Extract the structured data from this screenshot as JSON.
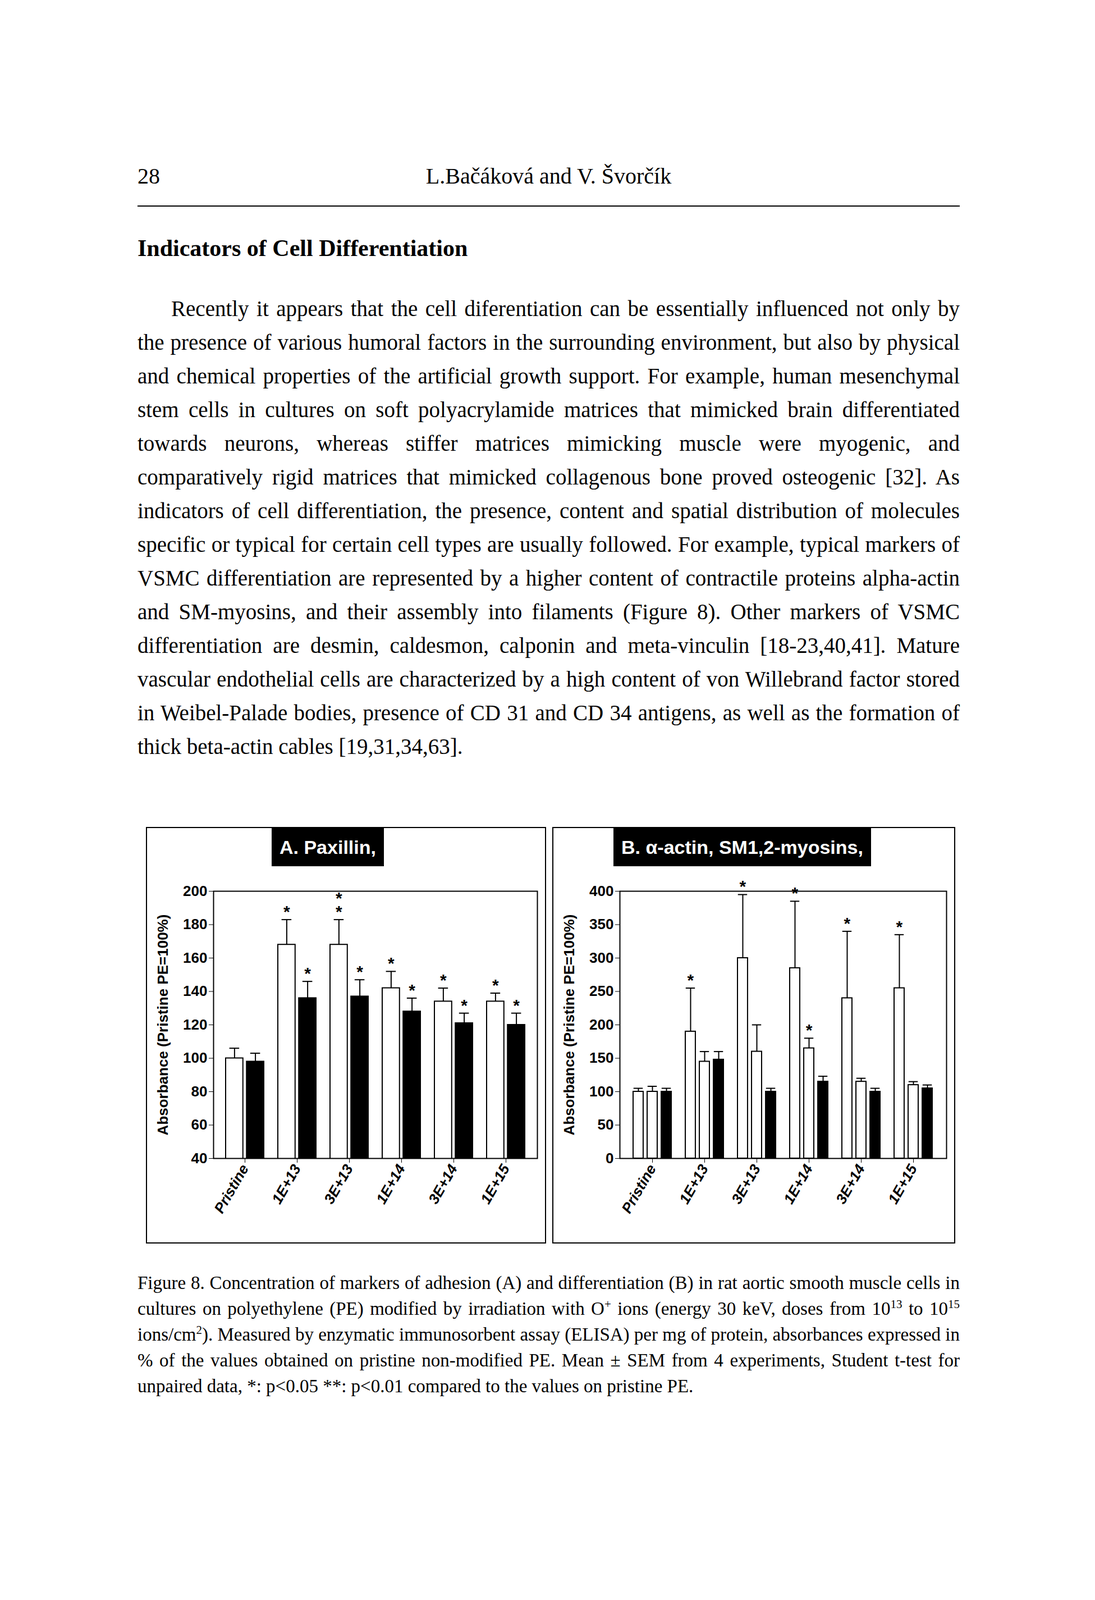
{
  "header": {
    "page_number": "28",
    "authors": "L.Bačáková and V. Švorčík"
  },
  "section_title": "Indicators of Cell Differentiation",
  "paragraph": "Recently it appears that the cell diferentiation can be essentially influenced not only by the presence of various humoral factors in the surrounding environment, but also by physical and chemical properties of the artificial growth support. For example, human mesenchymal stem cells in cultures on soft polyacrylamide matrices that mimicked brain differentiated towards neurons, whereas stiffer matrices mimicking muscle were myogenic, and comparatively rigid matrices that mimicked collagenous bone proved osteogenic [32]. As indicators of cell differentiation, the presence, content and spatial distribution of molecules specific or typical for certain cell types are usually followed. For example, typical markers of VSMC differentiation are represented by a higher content of contractile proteins alpha-actin and SM-myosins, and their assembly into filaments (Figure 8). Other markers of VSMC differentiation are desmin, caldesmon, calponin and meta-vinculin [18-23,40,41]. Mature vascular endothelial cells are characterized by a high content of von Willebrand factor stored in Weibel-Palade bodies, presence of CD 31 and CD 34 antigens, as well as the formation of thick beta-actin cables [19,31,34,63].",
  "chart_data": [
    {
      "type": "bar",
      "title": "A. Paxillin,",
      "y_label": "Absorbance (Pristine PE=100%)",
      "categories": [
        "Pristine",
        "1E+13",
        "3E+13",
        "1E+14",
        "3E+14",
        "1E+15"
      ],
      "series": [
        {
          "color": "#ffffff",
          "values": [
            100,
            168,
            168,
            142,
            134,
            134
          ],
          "errors": [
            6,
            15,
            15,
            10,
            8,
            5
          ],
          "significance": [
            null,
            "*",
            "**",
            "*",
            "*",
            "*"
          ]
        },
        {
          "color": "#000000",
          "values": [
            98,
            136,
            137,
            128,
            121,
            120
          ],
          "errors": [
            5,
            10,
            10,
            8,
            6,
            7
          ],
          "significance": [
            null,
            "*",
            "*",
            "*",
            "*",
            "*"
          ]
        }
      ],
      "ylim": [
        40,
        200
      ],
      "yticks": [
        40,
        60,
        80,
        100,
        120,
        140,
        160,
        180,
        200
      ]
    },
    {
      "type": "bar",
      "title": "B. α-actin, SM1,2-myosins,",
      "y_label": "Absorbance (Pristine PE=100%)",
      "categories": [
        "Pristine",
        "1E+13",
        "3E+13",
        "1E+14",
        "3E+14",
        "1E+15"
      ],
      "series": [
        {
          "color": "#ffffff",
          "values": [
            100,
            190,
            300,
            285,
            240,
            255
          ],
          "errors": [
            5,
            65,
            95,
            100,
            100,
            80
          ],
          "significance": [
            null,
            "*",
            "*",
            "*",
            "*",
            "*"
          ]
        },
        {
          "color": "#ffffff",
          "values": [
            100,
            145,
            160,
            165,
            115,
            110
          ],
          "errors": [
            8,
            15,
            40,
            15,
            5,
            5
          ],
          "significance": [
            null,
            null,
            null,
            "*",
            null,
            null
          ]
        },
        {
          "color": "#000000",
          "values": [
            100,
            148,
            100,
            115,
            100,
            105
          ],
          "errors": [
            5,
            12,
            5,
            8,
            5,
            5
          ],
          "significance": [
            null,
            null,
            null,
            null,
            null,
            null
          ]
        }
      ],
      "ylim": [
        0,
        400
      ],
      "yticks": [
        0,
        50,
        100,
        150,
        200,
        250,
        300,
        350,
        400
      ]
    }
  ],
  "caption": [
    {
      "text": "Figure 8. Concentration of markers of adhesion (A) and differentiation (B) in rat aortic smooth muscle cells in cultures on polyethylene (PE) modified by irradiation with O"
    },
    {
      "sup": "+"
    },
    {
      "text": " ions (energy 30 keV, doses from 10"
    },
    {
      "sup": "13"
    },
    {
      "text": " to 10"
    },
    {
      "sup": "15"
    },
    {
      "text": " ions/cm"
    },
    {
      "sup": "2"
    },
    {
      "text": "). Measured by enzymatic immunosorbent assay (ELISA) per mg of protein, absorbances expressed in % of the values obtained on pristine non-modified PE. Mean ± SEM from 4 experiments, Student t-test for unpaired data, *: p<0.05 **: p<0.01 compared to the values on pristine PE."
    }
  ]
}
